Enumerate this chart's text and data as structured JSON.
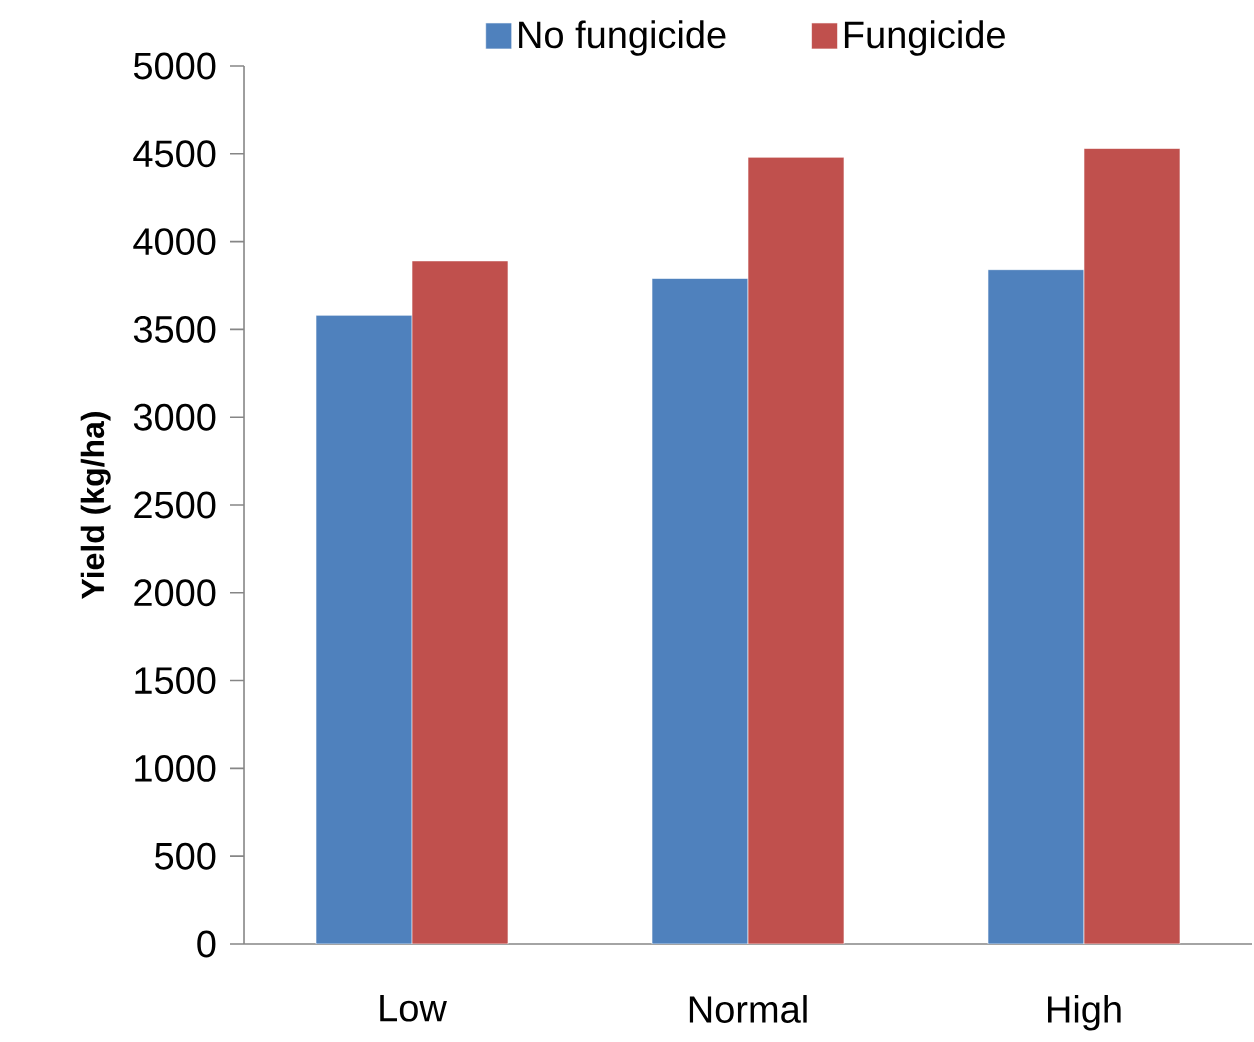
{
  "chart_data": {
    "type": "bar",
    "ylabel": "Yield (kg/ha)",
    "categories": [
      "Low",
      "Normal",
      "High"
    ],
    "series": [
      {
        "name": "No fungicide",
        "color": "#4f81bd",
        "values": [
          3580,
          3790,
          3840
        ]
      },
      {
        "name": "Fungicide",
        "color": "#c0504d",
        "values": [
          3890,
          4480,
          4530
        ]
      }
    ],
    "ylim": [
      0,
      5000
    ],
    "yticks": [
      0,
      500,
      1000,
      1500,
      2000,
      2500,
      3000,
      3500,
      4000,
      4500,
      5000
    ],
    "grid": false,
    "legend": "top"
  }
}
